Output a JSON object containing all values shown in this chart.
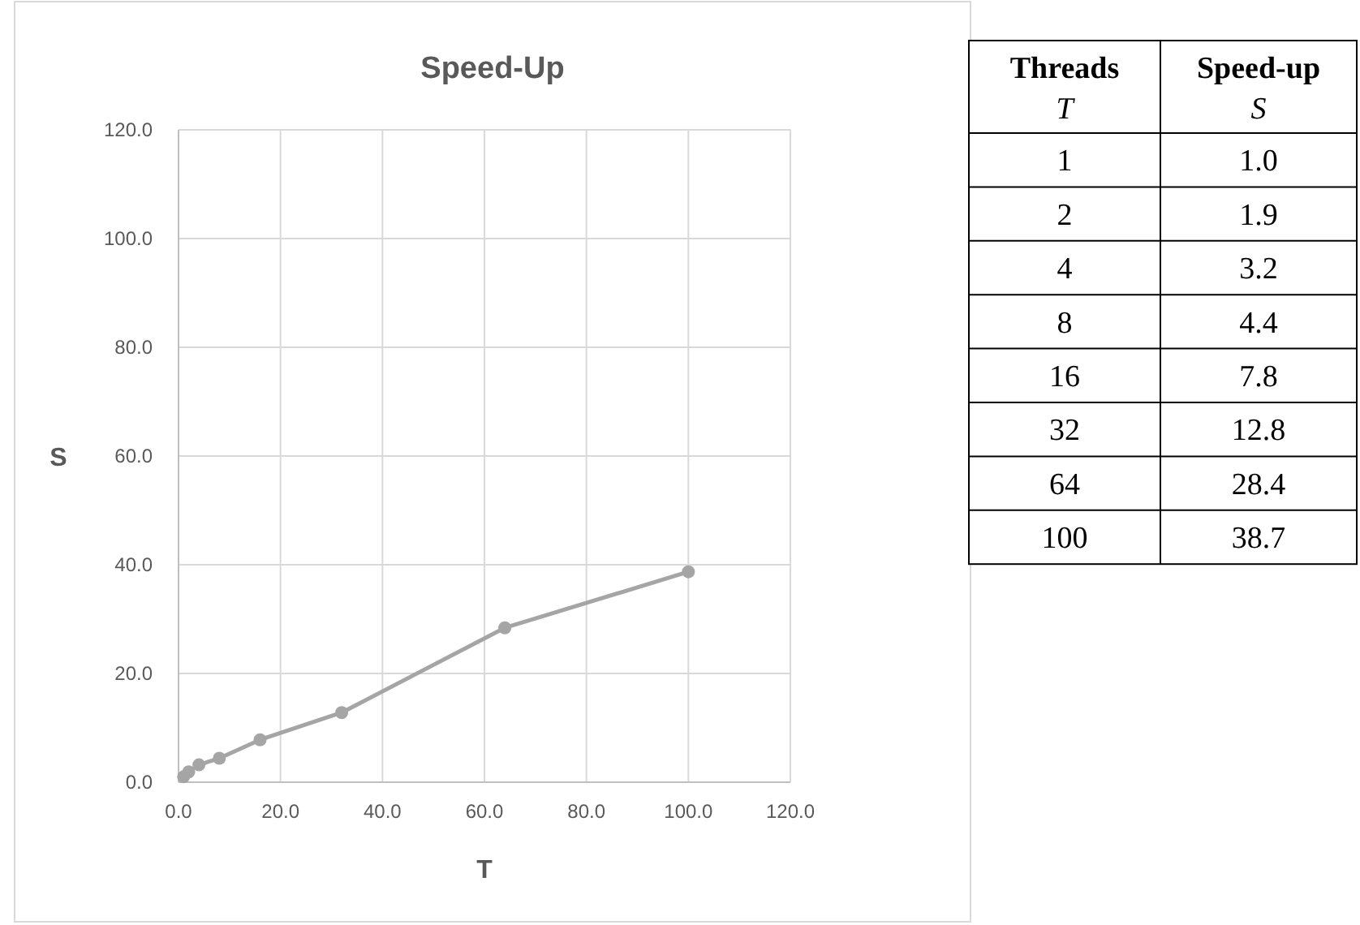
{
  "chart_data": [
    {
      "type": "line",
      "title": "Speed-Up",
      "xlabel": "T",
      "ylabel": "S",
      "x": [
        1,
        2,
        4,
        8,
        16,
        32,
        64,
        100
      ],
      "series": [
        {
          "color": "#a5a5a5",
          "values": [
            1.0,
            1.9,
            3.2,
            4.4,
            7.8,
            12.8,
            28.4,
            38.7
          ]
        }
      ],
      "xlim": [
        0,
        120
      ],
      "ylim": [
        0,
        120
      ],
      "xticks": [
        {
          "value": 0,
          "label": "0.0"
        },
        {
          "value": 20,
          "label": "20.0"
        },
        {
          "value": 40,
          "label": "40.0"
        },
        {
          "value": 60,
          "label": "60.0"
        },
        {
          "value": 80,
          "label": "80.0"
        },
        {
          "value": 100,
          "label": "100.0"
        },
        {
          "value": 120,
          "label": "120.0"
        }
      ],
      "yticks": [
        {
          "value": 0,
          "label": "0.0"
        },
        {
          "value": 20,
          "label": "20.0"
        },
        {
          "value": 40,
          "label": "40.0"
        },
        {
          "value": 60,
          "label": "60.0"
        },
        {
          "value": 80,
          "label": "80.0"
        },
        {
          "value": 100,
          "label": "100.0"
        },
        {
          "value": 120,
          "label": "120.0"
        }
      ],
      "grid": true,
      "marker": "circle",
      "line_style": "solid"
    },
    {
      "type": "other",
      "annotations": [
        "Threads",
        "Speed-up",
        "T",
        "S",
        "1",
        "1.0",
        "2",
        "1.9",
        "4",
        "3.2",
        "8",
        "4.4",
        "16",
        "7.8",
        "32",
        "12.8",
        "64",
        "28.4",
        "100",
        "38.7"
      ]
    }
  ]
}
